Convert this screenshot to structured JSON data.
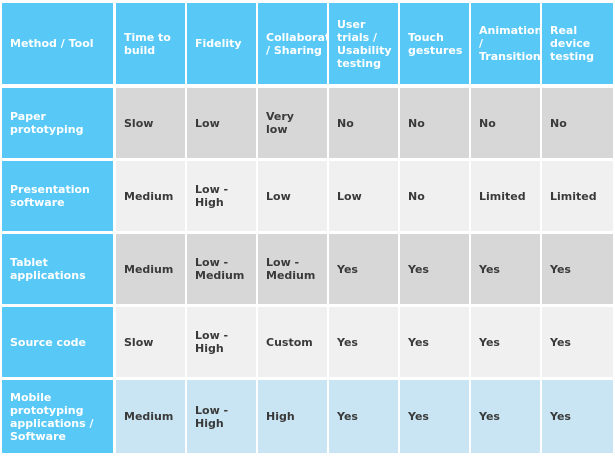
{
  "columns": [
    "Method / Tool",
    "Time to build",
    "Fidelity",
    "Collaboration / Sharing",
    "User trials / Usability testing",
    "Touch gestures",
    "Animations / Transitions",
    "Real device testing"
  ],
  "rows": [
    {
      "method": "Paper prototyping",
      "cells": [
        "Slow",
        "Low",
        "Very low",
        "No",
        "No",
        "No",
        "No"
      ]
    },
    {
      "method": "Presentation software",
      "cells": [
        "Medium",
        "Low - High",
        "Low",
        "Low",
        "No",
        "Limited",
        "Limited"
      ]
    },
    {
      "method": "Tablet applications",
      "cells": [
        "Medium",
        "Low - Medium",
        "Low - Medium",
        "Yes",
        "Yes",
        "Yes",
        "Yes"
      ]
    },
    {
      "method": "Source code",
      "cells": [
        "Slow",
        "Low - High",
        "Custom",
        "Yes",
        "Yes",
        "Yes",
        "Yes"
      ]
    },
    {
      "method": "Mobile prototyping applications / Software",
      "cells": [
        "Medium",
        "Low - High",
        "High",
        "Yes",
        "Yes",
        "Yes",
        "Yes"
      ]
    }
  ],
  "colors": {
    "header_blue": "#58c8f7",
    "row_gray_dark": "#d7d7d7",
    "row_gray_light": "#f0f0f0",
    "row_blue_light": "#c9e5f3"
  }
}
